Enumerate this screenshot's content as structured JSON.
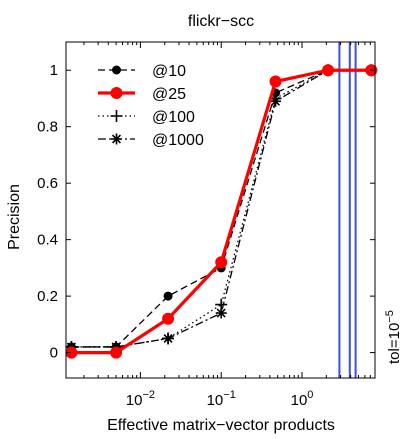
{
  "chart_data": {
    "type": "line",
    "title": "flickr−scc",
    "xlabel": "Effective matrix−vector products",
    "ylabel": "Precision",
    "x_scale": "log",
    "xlim": [
      0.0012,
      8
    ],
    "ylim": [
      -0.09,
      1.1
    ],
    "x_tick_labels": [
      {
        "value": 0.01,
        "base": "10",
        "exp": "−2"
      },
      {
        "value": 0.1,
        "base": "10",
        "exp": "−1"
      },
      {
        "value": 1,
        "base": "10",
        "exp": "0"
      }
    ],
    "y_ticks": [
      0,
      0.2,
      0.4,
      0.6,
      0.8,
      1
    ],
    "y_tick_labels": [
      "0",
      "0.2",
      "0.4",
      "0.6",
      "0.8",
      "1"
    ],
    "grid": false,
    "legend_position": "top-left",
    "series": [
      {
        "name": "@10",
        "color": "#000000",
        "dash": "dashed",
        "marker": "dot",
        "x": [
          0.0014,
          0.005,
          0.022,
          0.1,
          0.47,
          2.1,
          7.2
        ],
        "y": [
          0.02,
          0.02,
          0.2,
          0.3,
          0.92,
          1.0,
          1.0
        ]
      },
      {
        "name": "@25",
        "color": "#ff0000",
        "dash": "solid",
        "marker": "dot",
        "x": [
          0.0014,
          0.005,
          0.022,
          0.1,
          0.47,
          2.1,
          7.2
        ],
        "y": [
          0.0,
          0.0,
          0.12,
          0.32,
          0.96,
          1.0,
          1.0
        ]
      },
      {
        "name": "@100",
        "color": "#000000",
        "dash": "dotted",
        "marker": "plus",
        "x": [
          0.0014,
          0.005,
          0.022,
          0.1,
          0.47,
          2.1,
          7.2
        ],
        "y": [
          0.02,
          0.02,
          0.05,
          0.17,
          0.9,
          1.0,
          1.0
        ]
      },
      {
        "name": "@1000",
        "color": "#000000",
        "dash": "dashdot",
        "marker": "star",
        "x": [
          0.0014,
          0.005,
          0.022,
          0.1,
          0.47,
          2.1,
          7.2
        ],
        "y": [
          0.02,
          0.02,
          0.05,
          0.14,
          0.89,
          1.0,
          1.0
        ]
      }
    ],
    "vertical_lines": {
      "color": "#3a50d8",
      "x": [
        2.9,
        3.9,
        4.6
      ]
    },
    "annotation": {
      "base": "tol=10",
      "exp": "−5"
    }
  }
}
